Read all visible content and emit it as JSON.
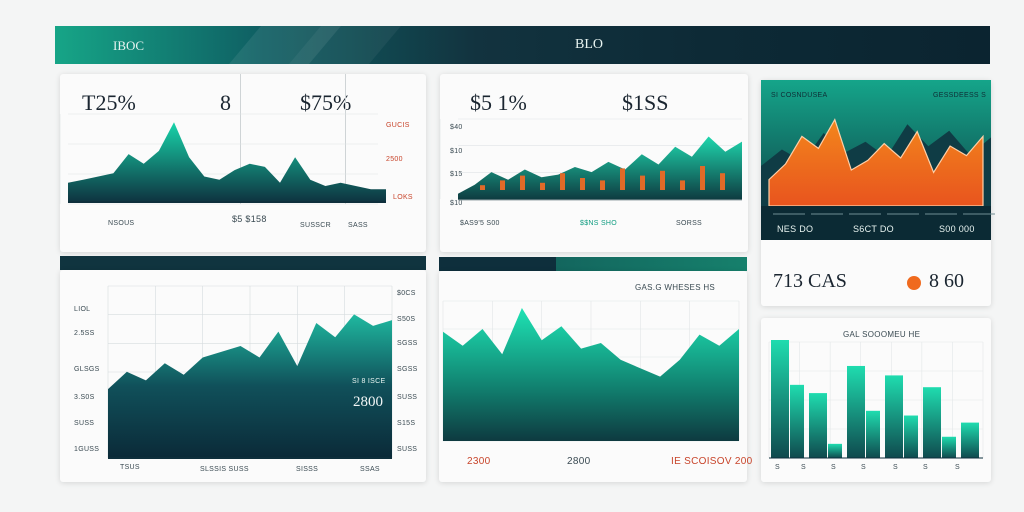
{
  "header": {
    "left_title": "IBOC",
    "right_title": "BLO"
  },
  "colors": {
    "teal": "#12c8a0",
    "dark": "#0e2f3c",
    "orange": "#f06a1e",
    "red": "#c8442a"
  },
  "card1": {
    "stat_a": "T25%",
    "stat_b": "8",
    "stat_c": "$75%",
    "ylabels": [
      "GUCIS",
      "2500",
      "LOKS"
    ],
    "under_labels": [
      "NSOUS",
      "SUSSCR",
      "SASS"
    ],
    "center_label": "$5 $158"
  },
  "card2": {
    "stat_a": "$5 1%",
    "stat_b": "$1SS",
    "ylabels": [
      "$40",
      "$10",
      "$15",
      "$10"
    ],
    "under_labels": [
      "$AS9'5 S00",
      "$$NS SHO",
      "SORSS"
    ]
  },
  "card3": {
    "header_labels": [
      "SI COSNDUSEA",
      "GESSDEESS S"
    ],
    "band_labels": [
      "NES DO",
      "S6CT DO",
      "S00 000"
    ],
    "stat_a": "713 CAS",
    "stat_b": "8 60"
  },
  "card4": {
    "ylabels": [
      "LIOL",
      "2.5SS",
      "GLSGS",
      "3.S0S",
      "SUSS",
      "1GUSS"
    ],
    "right_labels": [
      "$0CS",
      "S50S",
      "SGSS",
      "SGSS",
      "SUSS",
      "S15S",
      "SUSS"
    ],
    "value_label": "2800",
    "mini_label": "SI 8 ISCE",
    "xlabels": [
      "TSUS",
      "SLSSIS SUSS",
      "SISSS",
      "SSAS"
    ]
  },
  "card5": {
    "title": "GAS.G WHESES HS",
    "xlabels": [
      "2300",
      "2800",
      "IE SCOISOV 200"
    ]
  },
  "card6": {
    "title": "GAL SOOOMEU HE",
    "xlabels": [
      "S",
      "S",
      "S",
      "S",
      "S",
      "S",
      "S"
    ]
  },
  "chart_data": [
    {
      "type": "area",
      "values": [
        6,
        7,
        8,
        9,
        15,
        12,
        16,
        25,
        14,
        8,
        7,
        10,
        12,
        11,
        6,
        14,
        7,
        5,
        6,
        5,
        4,
        4
      ]
    },
    {
      "type": "area",
      "values": [
        5,
        12,
        22,
        16,
        24,
        18,
        20,
        26,
        22,
        30,
        24,
        36,
        28,
        42,
        34,
        50,
        38,
        46
      ],
      "bars": [
        4,
        8,
        12,
        6,
        14,
        10,
        8,
        18,
        12,
        16,
        8,
        20,
        14
      ]
    },
    {
      "type": "area",
      "values": [
        22,
        35,
        58,
        48,
        72,
        30,
        38,
        52,
        40,
        62,
        28,
        50,
        42,
        58
      ]
    },
    {
      "type": "area",
      "values": [
        48,
        60,
        54,
        66,
        58,
        70,
        74,
        78,
        70,
        88,
        64,
        94,
        84,
        100,
        92,
        96
      ]
    },
    {
      "type": "area",
      "values": [
        78,
        68,
        80,
        62,
        95,
        72,
        82,
        66,
        70,
        58,
        52,
        46,
        58,
        76,
        68,
        80
      ]
    },
    {
      "type": "bar",
      "values": [
        100,
        62,
        55,
        12,
        78,
        40,
        70,
        36,
        60,
        18,
        30
      ]
    }
  ]
}
